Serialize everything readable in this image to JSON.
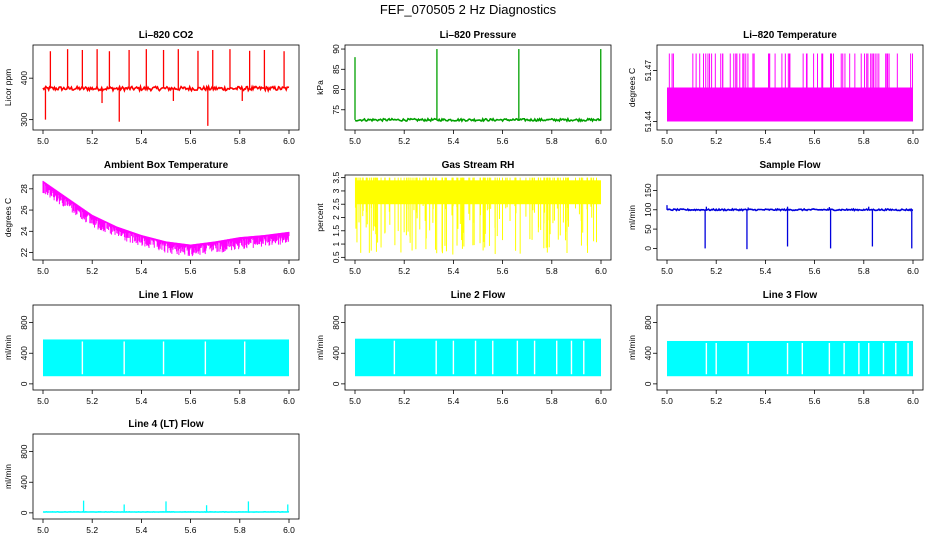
{
  "figure_title": "FEF_070505  2 Hz Diagnostics",
  "chart_data": [
    {
      "id": "co2",
      "type": "line",
      "title": "Li–820 CO2",
      "ylabel": "Licor ppm",
      "color": "#ff0000",
      "xlim": [
        5.0,
        6.0
      ],
      "ylim": [
        275,
        480
      ],
      "x_ticks": [
        "5.0",
        "5.2",
        "5.4",
        "5.6",
        "5.8",
        "6.0"
      ],
      "y_ticks": [
        300,
        400
      ],
      "baseline": 375,
      "noise": 5,
      "spikes": [
        [
          5.03,
          465
        ],
        [
          5.1,
          470
        ],
        [
          5.16,
          468
        ],
        [
          5.22,
          470
        ],
        [
          5.27,
          465
        ],
        [
          5.35,
          468
        ],
        [
          5.42,
          470
        ],
        [
          5.49,
          468
        ],
        [
          5.55,
          470
        ],
        [
          5.63,
          466
        ],
        [
          5.69,
          468
        ],
        [
          5.76,
          470
        ],
        [
          5.84,
          466
        ],
        [
          5.9,
          468
        ],
        [
          5.98,
          465
        ]
      ],
      "dips": [
        [
          5.01,
          300
        ],
        [
          5.31,
          295
        ],
        [
          5.67,
          285
        ],
        [
          5.24,
          340
        ],
        [
          5.53,
          345
        ],
        [
          5.81,
          345
        ]
      ]
    },
    {
      "id": "pressure",
      "type": "line",
      "title": "Li–820 Pressure",
      "ylabel": "kPa",
      "color": "#00a000",
      "xlim": [
        5.0,
        6.0
      ],
      "ylim": [
        70,
        91
      ],
      "x_ticks": [
        "5.0",
        "5.2",
        "5.4",
        "5.6",
        "5.8",
        "6.0"
      ],
      "y_ticks": [
        75,
        80,
        85,
        90
      ],
      "baseline": 72.5,
      "noise": 0.3,
      "spikes": [
        [
          5.0,
          88
        ],
        [
          5.333,
          90
        ],
        [
          5.666,
          90
        ],
        [
          5.999,
          90
        ]
      ],
      "dips": []
    },
    {
      "id": "licor_temp",
      "type": "band",
      "title": "Li–820 Temperature",
      "ylabel": "degrees C",
      "color": "#ff00ff",
      "xlim": [
        5.0,
        6.0
      ],
      "ylim": [
        51.435,
        51.485
      ],
      "x_ticks": [
        "5.0",
        "5.2",
        "5.4",
        "5.6",
        "5.8",
        "6.0"
      ],
      "y_ticks": [
        51.44,
        51.47
      ],
      "low": 51.44,
      "high": 51.46,
      "top": 51.48,
      "lines": 70
    },
    {
      "id": "box_temp",
      "type": "trend",
      "title": "Ambient Box Temperature",
      "ylabel": "degrees C",
      "color": "#ff00ff",
      "xlim": [
        5.0,
        6.0
      ],
      "ylim": [
        21.3,
        29.3
      ],
      "x_ticks": [
        "5.0",
        "5.2",
        "5.4",
        "5.6",
        "5.8",
        "6.0"
      ],
      "y_ticks": [
        22,
        24,
        26,
        28
      ],
      "knots": [
        [
          5.0,
          28.6
        ],
        [
          5.1,
          27.0
        ],
        [
          5.2,
          25.4
        ],
        [
          5.3,
          24.3
        ],
        [
          5.4,
          23.5
        ],
        [
          5.5,
          22.9
        ],
        [
          5.6,
          22.6
        ],
        [
          5.7,
          22.9
        ],
        [
          5.8,
          23.3
        ],
        [
          5.9,
          23.5
        ],
        [
          6.0,
          23.8
        ]
      ],
      "spread": 1.0
    },
    {
      "id": "rh",
      "type": "band",
      "title": "Gas Stream RH",
      "ylabel": "percent",
      "color": "#ffff00",
      "xlim": [
        5.0,
        6.0
      ],
      "ylim": [
        0.4,
        3.6
      ],
      "x_ticks": [
        "5.0",
        "5.2",
        "5.4",
        "5.6",
        "5.8",
        "6.0"
      ],
      "y_ticks": [
        0.5,
        1,
        1.5,
        2,
        2.5,
        3,
        3.5
      ],
      "low": 2.5,
      "high": 3.4,
      "top": 3.5,
      "bottom": 0.6,
      "lines": 140
    },
    {
      "id": "sample_flow",
      "type": "line",
      "title": "Sample Flow",
      "ylabel": "ml/min",
      "color": "#0000dd",
      "xlim": [
        5.0,
        6.0
      ],
      "ylim": [
        -30,
        190
      ],
      "x_ticks": [
        "5.0",
        "5.2",
        "5.4",
        "5.6",
        "5.8",
        "6.0"
      ],
      "y_ticks": [
        0,
        50,
        100,
        150
      ],
      "baseline": 100,
      "noise": 2,
      "spikes": [
        [
          5.0,
          112
        ],
        [
          5.16,
          108
        ],
        [
          5.33,
          106
        ],
        [
          5.49,
          108
        ],
        [
          5.66,
          107
        ],
        [
          5.82,
          108
        ]
      ],
      "dips": [
        [
          5.155,
          0
        ],
        [
          5.325,
          -2
        ],
        [
          5.49,
          5
        ],
        [
          5.665,
          0
        ],
        [
          5.835,
          5
        ],
        [
          5.995,
          0
        ]
      ]
    },
    {
      "id": "line1",
      "type": "block",
      "title": "Line 1 Flow",
      "ylabel": "ml/min",
      "color": "#00ffff",
      "xlim": [
        5.0,
        6.0
      ],
      "ylim": [
        -80,
        1030
      ],
      "x_ticks": [
        "5.0",
        "5.2",
        "5.4",
        "5.6",
        "5.8",
        "6.0"
      ],
      "y_ticks": [
        0,
        400,
        800
      ],
      "low": 100,
      "high": 580,
      "gaps": [
        5.16,
        5.33,
        5.49,
        5.66,
        5.82
      ]
    },
    {
      "id": "line2",
      "type": "block",
      "title": "Line 2 Flow",
      "ylabel": "ml/min",
      "color": "#00ffff",
      "xlim": [
        5.0,
        6.0
      ],
      "ylim": [
        -80,
        1030
      ],
      "x_ticks": [
        "5.0",
        "5.2",
        "5.4",
        "5.6",
        "5.8",
        "6.0"
      ],
      "y_ticks": [
        0,
        400,
        800
      ],
      "low": 100,
      "high": 590,
      "gaps": [
        5.16,
        5.33,
        5.4,
        5.49,
        5.56,
        5.66,
        5.73,
        5.82,
        5.88,
        5.93
      ]
    },
    {
      "id": "line3",
      "type": "block",
      "title": "Line 3 Flow",
      "ylabel": "ml/min",
      "color": "#00ffff",
      "xlim": [
        5.0,
        6.0
      ],
      "ylim": [
        -80,
        1030
      ],
      "x_ticks": [
        "5.0",
        "5.2",
        "5.4",
        "5.6",
        "5.8",
        "6.0"
      ],
      "y_ticks": [
        0,
        400,
        800
      ],
      "low": 100,
      "high": 560,
      "gaps": [
        5.16,
        5.2,
        5.33,
        5.49,
        5.55,
        5.66,
        5.72,
        5.78,
        5.82,
        5.88,
        5.93,
        5.98
      ]
    },
    {
      "id": "line4",
      "type": "line",
      "title": "Line 4 (LT) Flow",
      "ylabel": "ml/min",
      "color": "#00ffff",
      "xlim": [
        5.0,
        6.0
      ],
      "ylim": [
        -80,
        1030
      ],
      "x_ticks": [
        "5.0",
        "5.2",
        "5.4",
        "5.6",
        "5.8",
        "6.0"
      ],
      "y_ticks": [
        0,
        400,
        800
      ],
      "baseline": 12,
      "noise": 2,
      "spikes": [
        [
          5.165,
          160
        ],
        [
          5.33,
          110
        ],
        [
          5.5,
          150
        ],
        [
          5.665,
          100
        ],
        [
          5.835,
          150
        ],
        [
          5.995,
          110
        ]
      ],
      "dips": []
    }
  ]
}
